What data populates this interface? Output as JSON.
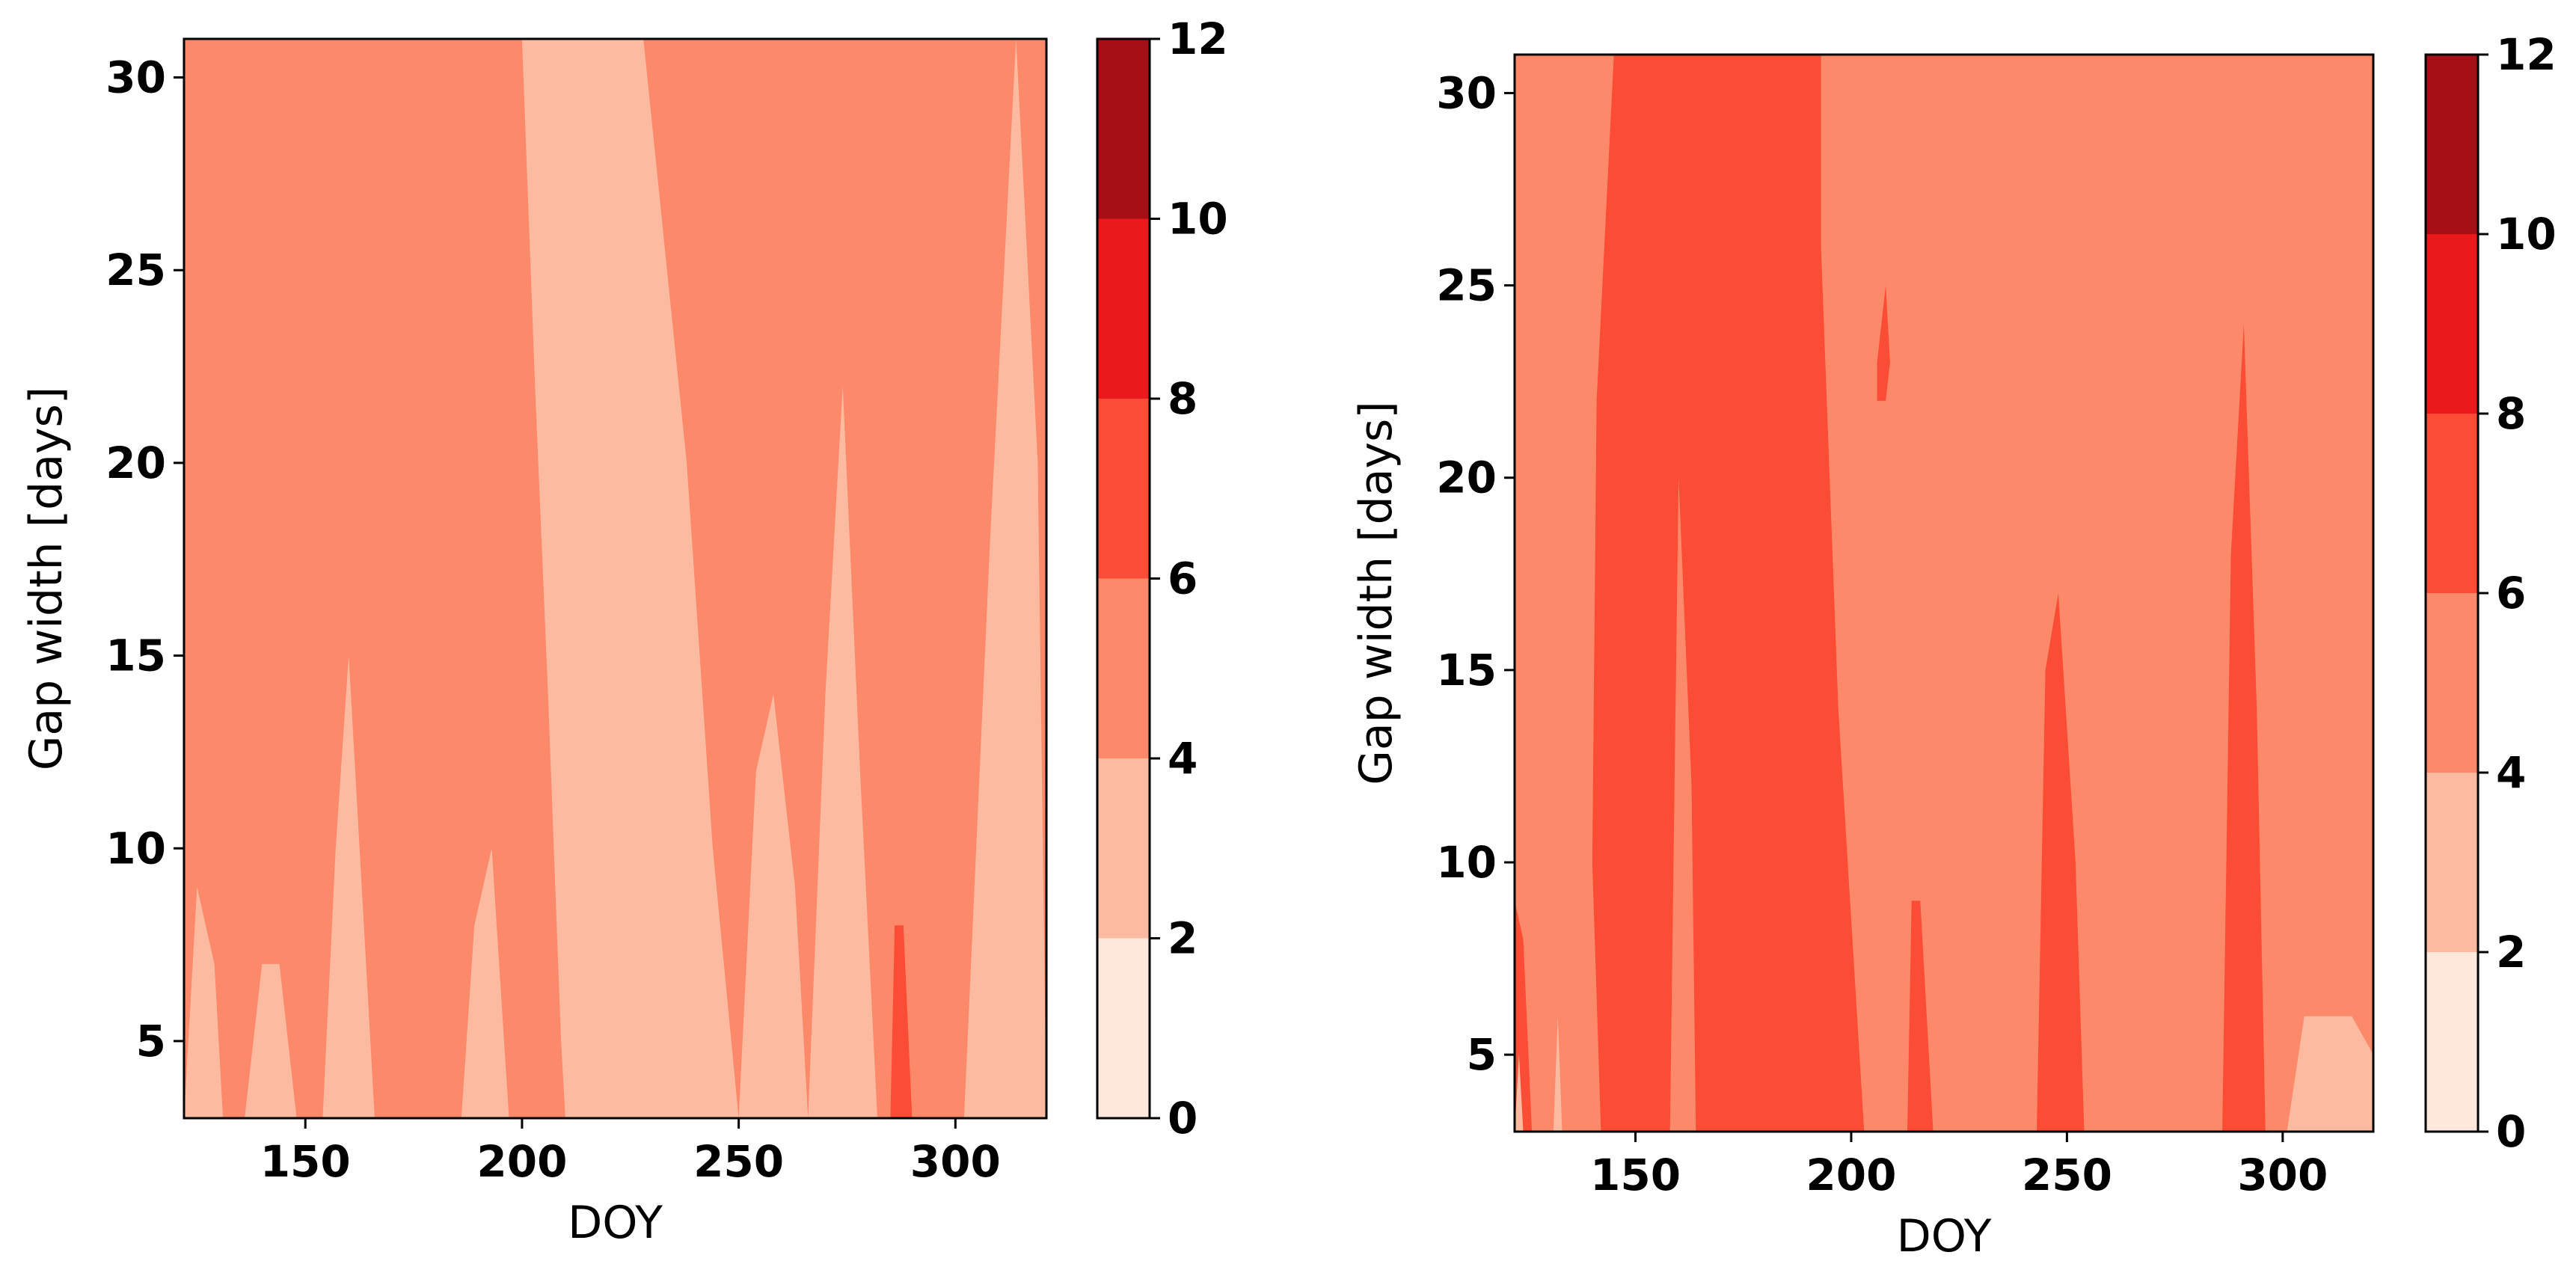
{
  "chart_data": [
    {
      "type": "heatmap",
      "xlabel": "DOY",
      "ylabel": "Gap width [days]",
      "xlim": [
        122,
        321
      ],
      "ylim": [
        3,
        31
      ],
      "xticks": [
        150,
        200,
        250,
        300
      ],
      "yticks": [
        5,
        10,
        15,
        20,
        25,
        30
      ],
      "colorbar": {
        "levels": [
          0,
          2,
          4,
          6,
          8,
          10,
          12
        ],
        "colors": [
          "#fee8dc",
          "#fcbba1",
          "#fc8a6a",
          "#fb4c36",
          "#ea1a1c",
          "#a50f15"
        ],
        "ticks": [
          "0",
          "2",
          "4",
          "6",
          "8",
          "10",
          "12"
        ]
      },
      "background_level": 4,
      "regions": [
        {
          "level": 2,
          "x": [
            210,
            215,
            217,
            225,
            230,
            234,
            238,
            242,
            246,
            248,
            250,
            244,
            238,
            228,
            200,
            203,
            206,
            209
          ],
          "y": [
            3,
            3,
            3,
            3,
            3,
            3,
            3,
            3,
            3,
            3,
            3,
            10,
            20,
            31,
            31,
            22,
            14,
            5
          ]
        },
        {
          "level": 2,
          "x": [
            154,
            157,
            160,
            163,
            166,
            163,
            160,
            157
          ],
          "y": [
            3,
            3,
            3,
            3,
            3,
            9,
            15,
            10
          ]
        },
        {
          "level": 2,
          "x": [
            122,
            128,
            131,
            129,
            125
          ],
          "y": [
            3,
            3,
            3,
            7,
            9
          ]
        },
        {
          "level": 2,
          "x": [
            250,
            255,
            258,
            262,
            266,
            263,
            258,
            254
          ],
          "y": [
            3,
            3,
            3,
            3,
            3,
            9,
            14,
            12
          ]
        },
        {
          "level": 2,
          "x": [
            266,
            270,
            274,
            279,
            282,
            278,
            274,
            270
          ],
          "y": [
            3,
            3,
            3,
            3,
            3,
            12,
            22,
            14
          ]
        },
        {
          "level": 2,
          "x": [
            302,
            308,
            314,
            319,
            321,
            319,
            314,
            308
          ],
          "y": [
            3,
            3,
            3,
            3,
            3,
            20,
            31,
            18
          ]
        },
        {
          "level": 2,
          "x": [
            186,
            190,
            194,
            197,
            193,
            189
          ],
          "y": [
            3,
            3,
            3,
            3,
            10,
            8
          ]
        },
        {
          "level": 2,
          "x": [
            136,
            140,
            145,
            148,
            144,
            140
          ],
          "y": [
            3,
            3,
            3,
            3,
            7,
            7
          ]
        },
        {
          "level": 6,
          "x": [
            285,
            288,
            290,
            288,
            286
          ],
          "y": [
            3,
            3,
            3,
            8,
            8
          ]
        }
      ]
    },
    {
      "type": "heatmap",
      "xlabel": "DOY",
      "ylabel": "Gap width [days]",
      "xlim": [
        122,
        321
      ],
      "ylim": [
        3,
        31
      ],
      "xticks": [
        150,
        200,
        250,
        300
      ],
      "yticks": [
        5,
        10,
        15,
        20,
        25,
        30
      ],
      "colorbar": {
        "levels": [
          0,
          2,
          4,
          6,
          8,
          10,
          12
        ],
        "colors": [
          "#fee8dc",
          "#fcbba1",
          "#fc8a6a",
          "#fb4c36",
          "#ea1a1c",
          "#a50f15"
        ],
        "ticks": [
          "0",
          "2",
          "4",
          "6",
          "8",
          "10",
          "12"
        ]
      },
      "background_level": 4,
      "regions": [
        {
          "level": 6,
          "x": [
            142,
            148,
            155,
            160,
            165,
            172,
            180,
            188,
            195,
            199,
            203,
            197,
            193,
            193,
            185,
            175,
            165,
            155,
            145,
            141,
            140
          ],
          "y": [
            3,
            3,
            3,
            3,
            3,
            3,
            3,
            3,
            3,
            3,
            3,
            14,
            26,
            31,
            31,
            31,
            31,
            31,
            31,
            22,
            10
          ]
        },
        {
          "level": 6,
          "x": [
            122,
            124,
            126,
            124,
            122
          ],
          "y": [
            3,
            3,
            3,
            8,
            9
          ]
        },
        {
          "level": 6,
          "x": [
            243,
            246,
            250,
            252,
            254,
            252,
            248,
            245
          ],
          "y": [
            3,
            3,
            3,
            3,
            3,
            10,
            17,
            15
          ]
        },
        {
          "level": 6,
          "x": [
            286,
            289,
            292,
            295,
            296,
            294,
            291,
            288
          ],
          "y": [
            3,
            3,
            3,
            3,
            3,
            14,
            24,
            18
          ]
        },
        {
          "level": 6,
          "x": [
            213,
            215,
            218,
            219,
            216,
            214
          ],
          "y": [
            3,
            3,
            3,
            3,
            9,
            9
          ]
        },
        {
          "level": 6,
          "x": [
            206,
            208,
            209,
            208,
            206
          ],
          "y": [
            22,
            22,
            23,
            25,
            23
          ]
        },
        {
          "level": 4,
          "x": [
            158,
            161,
            164,
            163,
            160
          ],
          "y": [
            3,
            3,
            3,
            12,
            20
          ]
        },
        {
          "level": 2,
          "x": [
            122,
            123,
            124,
            123
          ],
          "y": [
            3,
            3,
            3,
            5
          ]
        },
        {
          "level": 2,
          "x": [
            131,
            132,
            133,
            132
          ],
          "y": [
            3,
            3,
            3,
            6
          ]
        },
        {
          "level": 2,
          "x": [
            301,
            304,
            309,
            313,
            318,
            321,
            321,
            316,
            310,
            305
          ],
          "y": [
            3,
            3,
            3,
            3,
            3,
            3,
            5,
            6,
            6,
            6
          ]
        }
      ]
    }
  ]
}
